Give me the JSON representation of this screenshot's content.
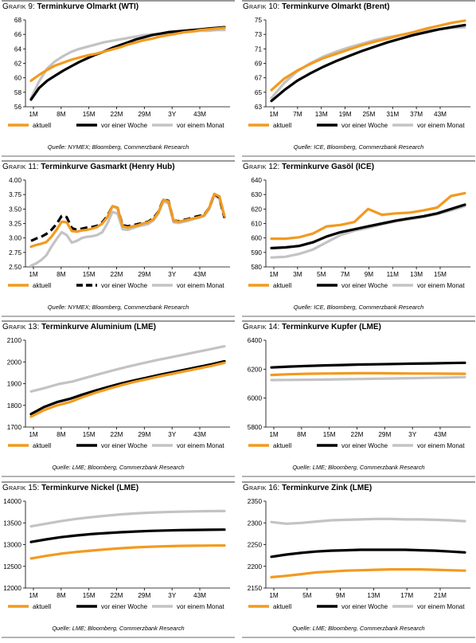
{
  "series_style": {
    "aktuell": "#f29a1f",
    "week": "#000000",
    "month": "#c3c3c3"
  },
  "charts": [
    {
      "grafik_word": "Grafik",
      "number": "9:",
      "title": "Terminkurve Olmarkt (WTI)",
      "source": "Quelle: NYMEX; Bloomberg, Commerzbank Research",
      "chart_data": {
        "type": "line",
        "title": "Terminkurve Olmarkt (WTI)",
        "ylim": [
          56,
          68
        ],
        "yticks": [
          "56",
          "58",
          "60",
          "62",
          "64",
          "66",
          "68"
        ],
        "xticks": [
          "1M",
          "8M",
          "15M",
          "22M",
          "29M",
          "3Y",
          "43M"
        ],
        "grid": false,
        "legend": "bottom",
        "x_points": 49,
        "series": [
          {
            "name": "aktuell",
            "dash": false,
            "y": [
              59.6,
              60.4,
              61.1,
              61.7,
              62.1,
              62.5,
              62.8,
              63.1,
              63.3,
              63.6,
              63.9,
              64.2,
              64.6,
              64.9,
              65.2,
              65.4,
              65.7,
              65.9,
              66.1,
              66.3,
              66.4,
              66.6,
              66.7,
              66.8,
              66.9
            ]
          },
          {
            "name": "vor einer Woche",
            "dash": false,
            "y": [
              57.0,
              58.6,
              59.6,
              60.3,
              61.0,
              61.6,
              62.2,
              62.7,
              63.2,
              63.6,
              64.1,
              64.5,
              64.9,
              65.3,
              65.6,
              65.9,
              66.1,
              66.3,
              66.4,
              66.5,
              66.6,
              66.7,
              66.8,
              66.9,
              67.0
            ]
          },
          {
            "name": "vor einem Monat",
            "dash": false,
            "y": [
              57.2,
              59.5,
              61.3,
              62.3,
              63.0,
              63.6,
              64.0,
              64.3,
              64.6,
              64.9,
              65.1,
              65.3,
              65.5,
              65.7,
              65.9,
              66.0,
              66.1,
              66.2,
              66.3,
              66.4,
              66.4,
              66.5,
              66.5,
              66.6,
              66.6
            ]
          }
        ]
      }
    },
    {
      "grafik_word": "Grafik",
      "number": "10:",
      "title": "Terminkurve Olmarkt (Brent)",
      "source": "Quelle: ICE, Bloomberg, Commerzbank Research",
      "chart_data": {
        "type": "line",
        "title": "Terminkurve Olmarkt (Brent)",
        "ylim": [
          63,
          75
        ],
        "yticks": [
          "63",
          "65",
          "67",
          "69",
          "71",
          "73",
          "75"
        ],
        "xticks": [
          "1M",
          "7M",
          "13M",
          "19M",
          "25M",
          "31M",
          "37M",
          "43M"
        ],
        "grid": false,
        "legend": "bottom",
        "x_points": 49,
        "series": [
          {
            "name": "aktuell",
            "dash": false,
            "y": [
              65.3,
              66.9,
              68.0,
              68.9,
              69.7,
              70.3,
              70.9,
              71.5,
              72.0,
              72.4,
              72.9,
              73.3,
              73.8,
              74.2,
              74.6,
              74.9
            ]
          },
          {
            "name": "vor einer Woche",
            "dash": false,
            "y": [
              63.8,
              65.3,
              66.6,
              67.6,
              68.5,
              69.3,
              70.0,
              70.7,
              71.3,
              71.9,
              72.4,
              72.9,
              73.3,
              73.7,
              74.0,
              74.3
            ]
          },
          {
            "name": "vor einem Monat",
            "dash": false,
            "y": [
              64.2,
              66.3,
              67.9,
              69.0,
              69.9,
              70.6,
              71.2,
              71.7,
              72.2,
              72.6,
              72.9,
              73.2,
              73.5,
              73.7,
              73.9,
              74.0
            ]
          }
        ]
      }
    },
    {
      "grafik_word": "Grafik",
      "number": "11:",
      "title": "Terminkurve Gasmarkt (Henry Hub)",
      "source": "Quelle: NYMEX; Bloomberg, Commerzbank Research",
      "chart_data": {
        "type": "line",
        "title": "Terminkurve Gasmarkt (Henry Hub)",
        "ylim": [
          2.5,
          4.0
        ],
        "yticks": [
          "2.50",
          "2.75",
          "3.00",
          "3.25",
          "3.50",
          "3.75",
          "4.00"
        ],
        "xticks": [
          "1M",
          "8M",
          "15M",
          "22M",
          "29M",
          "3Y",
          "43M"
        ],
        "grid": false,
        "legend": "bottom",
        "x_points": 49,
        "series": [
          {
            "name": "aktuell",
            "dash": false,
            "y": [
              2.85,
              2.88,
              2.9,
              2.93,
              3.02,
              3.14,
              3.28,
              3.27,
              3.12,
              3.11,
              3.13,
              3.14,
              3.16,
              3.19,
              3.25,
              3.36,
              3.55,
              3.52,
              3.2,
              3.18,
              3.2,
              3.22,
              3.25,
              3.27,
              3.32,
              3.44,
              3.66,
              3.63,
              3.3,
              3.28,
              3.3,
              3.32,
              3.34,
              3.36,
              3.39,
              3.52,
              3.76,
              3.72,
              3.38
            ]
          },
          {
            "name": "vor einer Woche",
            "dash": true,
            "y": [
              2.95,
              2.99,
              3.02,
              3.07,
              3.14,
              3.24,
              3.38,
              3.36,
              3.17,
              3.14,
              3.16,
              3.18,
              3.19,
              3.21,
              3.27,
              3.38,
              3.55,
              3.52,
              3.22,
              3.2,
              3.22,
              3.24,
              3.26,
              3.28,
              3.34,
              3.45,
              3.67,
              3.64,
              3.3,
              3.29,
              3.31,
              3.33,
              3.36,
              3.38,
              3.4,
              3.52,
              3.76,
              3.7,
              3.35
            ]
          },
          {
            "name": "vor einem Monat",
            "dash": false,
            "y": [
              2.52,
              2.56,
              2.62,
              2.7,
              2.85,
              2.98,
              3.1,
              3.05,
              2.92,
              2.95,
              3.0,
              3.02,
              3.03,
              3.05,
              3.1,
              3.25,
              3.45,
              3.42,
              3.15,
              3.14,
              3.17,
              3.2,
              3.22,
              3.24,
              3.3,
              3.42,
              3.63,
              3.6,
              3.27,
              3.26,
              3.28,
              3.3,
              3.33,
              3.35,
              3.38,
              3.5,
              3.73,
              3.68,
              3.35
            ]
          }
        ]
      }
    },
    {
      "grafik_word": "Grafik",
      "number": "12:",
      "title": "Terminkurve Gasöl (ICE)",
      "source": "Quelle: ICE, Bloomberg, Commerzbank Research",
      "chart_data": {
        "type": "line",
        "title": "Terminkurve Gasöl (ICE)",
        "ylim": [
          580,
          640
        ],
        "yticks": [
          "580",
          "590",
          "600",
          "610",
          "620",
          "630",
          "640"
        ],
        "xticks": [
          "1M",
          "3M",
          "5M",
          "7M",
          "9M",
          "11M",
          "13M",
          "15M"
        ],
        "grid": false,
        "legend": "bottom",
        "x_points": 15,
        "series": [
          {
            "name": "aktuell",
            "dash": false,
            "y": [
              599.5,
              599.5,
              600.5,
              603.0,
              608.0,
              609.0,
              611.0,
              620.0,
              616.0,
              617.0,
              617.5,
              619.0,
              621.0,
              629.0,
              631.0
            ]
          },
          {
            "name": "vor einer Woche",
            "dash": false,
            "y": [
              593.0,
              593.5,
              594.5,
              597.0,
              601.0,
              604.0,
              606.0,
              608.0,
              610.0,
              612.0,
              613.5,
              615.0,
              617.0,
              620.0,
              623.0
            ]
          },
          {
            "name": "vor einem Monat",
            "dash": false,
            "y": [
              586.5,
              587.0,
              589.0,
              592.0,
              597.0,
              602.0,
              605.0,
              607.0,
              609.5,
              611.5,
              613.0,
              614.5,
              616.5,
              619.0,
              622.0
            ]
          }
        ]
      }
    },
    {
      "grafik_word": "Grafik",
      "number": "13:",
      "title": "Terminkurve Aluminium (LME)",
      "source": "Quelle: LME; Bloomberg, Commerzbank Research",
      "chart_data": {
        "type": "line",
        "title": "Terminkurve Aluminium (LME)",
        "ylim": [
          1700,
          2100
        ],
        "yticks": [
          "1700",
          "1800",
          "1900",
          "2000",
          "2100"
        ],
        "xticks": [
          "1M",
          "8M",
          "15M",
          "22M",
          "29M",
          "3Y",
          "43M"
        ],
        "grid": false,
        "legend": "bottom",
        "x_points": 49,
        "series": [
          {
            "name": "aktuell",
            "dash": false,
            "y": [
              1748,
              1778,
              1800,
              1815,
              1838,
              1858,
              1876,
              1893,
              1908,
              1921,
              1934,
              1946,
              1958,
              1970,
              1982,
              1996
            ]
          },
          {
            "name": "vor einer Woche",
            "dash": false,
            "y": [
              1760,
              1792,
              1815,
              1830,
              1850,
              1868,
              1885,
              1901,
              1915,
              1928,
              1941,
              1953,
              1965,
              1977,
              1989,
              2003
            ]
          },
          {
            "name": "vor einem Monat",
            "dash": false,
            "y": [
              1864,
              1880,
              1898,
              1910,
              1928,
              1945,
              1962,
              1978,
              1993,
              2007,
              2020,
              2033,
              2046,
              2059,
              2072
            ]
          }
        ]
      }
    },
    {
      "grafik_word": "Grafik",
      "number": "14:",
      "title": "Terminkurve Kupfer (LME)",
      "source": "Quelle: LME; Bloomberg, Commerzbank Research",
      "chart_data": {
        "type": "line",
        "title": "Terminkurve Kupfer (LME)",
        "ylim": [
          5800,
          6400
        ],
        "yticks": [
          "5800",
          "6000",
          "6200",
          "6400"
        ],
        "xticks": [
          "1M",
          "8M",
          "15M",
          "22M",
          "29M",
          "3Y",
          "43M"
        ],
        "grid": false,
        "legend": "bottom",
        "x_points": 49,
        "series": [
          {
            "name": "aktuell",
            "dash": false,
            "y": [
              6160,
              6165,
              6168,
              6170,
              6171,
              6172,
              6172,
              6171,
              6170,
              6170,
              6169,
              6168
            ]
          },
          {
            "name": "vor einer Woche",
            "dash": false,
            "y": [
              6212,
              6218,
              6222,
              6226,
              6229,
              6232,
              6234,
              6236,
              6238,
              6240,
              6242,
              6244
            ]
          },
          {
            "name": "vor einem Monat",
            "dash": false,
            "y": [
              6125,
              6126,
              6127,
              6128,
              6130,
              6132,
              6134,
              6136,
              6138,
              6140,
              6142,
              6145
            ]
          }
        ]
      }
    },
    {
      "grafik_word": "Grafik",
      "number": "15:",
      "title": "Terminkurve Nickel (LME)",
      "source": "Quelle: LME; Bloomberg, Commerzbank Research",
      "chart_data": {
        "type": "line",
        "title": "Terminkurve Nickel (LME)",
        "ylim": [
          12000,
          14000
        ],
        "yticks": [
          "12000",
          "12500",
          "13000",
          "13500",
          "14000"
        ],
        "xticks": [
          "1M",
          "8M",
          "15M",
          "22M",
          "29M",
          "3Y",
          "43M"
        ],
        "grid": false,
        "legend": "bottom",
        "x_points": 49,
        "series": [
          {
            "name": "aktuell",
            "dash": false,
            "y": [
              12680,
              12740,
              12790,
              12830,
              12860,
              12890,
              12915,
              12935,
              12950,
              12962,
              12970,
              12975,
              12978,
              12980
            ]
          },
          {
            "name": "vor einer Woche",
            "dash": false,
            "y": [
              13060,
              13120,
              13170,
              13210,
              13240,
              13265,
              13285,
              13300,
              13315,
              13325,
              13332,
              13338,
              13342,
              13345
            ]
          },
          {
            "name": "vor einem Monat",
            "dash": false,
            "y": [
              13420,
              13480,
              13540,
              13590,
              13630,
              13665,
              13695,
              13718,
              13735,
              13748,
              13758,
              13765,
              13770,
              13772
            ]
          }
        ]
      }
    },
    {
      "grafik_word": "Grafik",
      "number": "16:",
      "title": "Terminkurve Zink (LME)",
      "source": "Quelle: LME; Bloomberg, Commerzbank Research",
      "chart_data": {
        "type": "line",
        "title": "Terminkurve Zink (LME)",
        "ylim": [
          2150,
          2350
        ],
        "yticks": [
          "2150",
          "2200",
          "2250",
          "2300",
          "2350"
        ],
        "xticks": [
          "1M",
          "5M",
          "9M",
          "13M",
          "17M",
          "21M"
        ],
        "grid": false,
        "legend": "bottom",
        "x_points": 25,
        "series": [
          {
            "name": "aktuell",
            "dash": false,
            "y": [
              2175,
              2178,
              2182,
              2186,
              2188,
              2190,
              2191,
              2192,
              2193,
              2193,
              2193,
              2192,
              2191,
              2190
            ]
          },
          {
            "name": "vor einer Woche",
            "dash": false,
            "y": [
              2222,
              2227,
              2231,
              2234,
              2236,
              2237,
              2238,
              2238,
              2238,
              2238,
              2237,
              2236,
              2234,
              2232
            ]
          },
          {
            "name": "vor einem Monat",
            "dash": false,
            "y": [
              2302,
              2298,
              2300,
              2303,
              2306,
              2307,
              2308,
              2309,
              2309,
              2308,
              2308,
              2307,
              2306,
              2304
            ]
          }
        ]
      }
    }
  ]
}
